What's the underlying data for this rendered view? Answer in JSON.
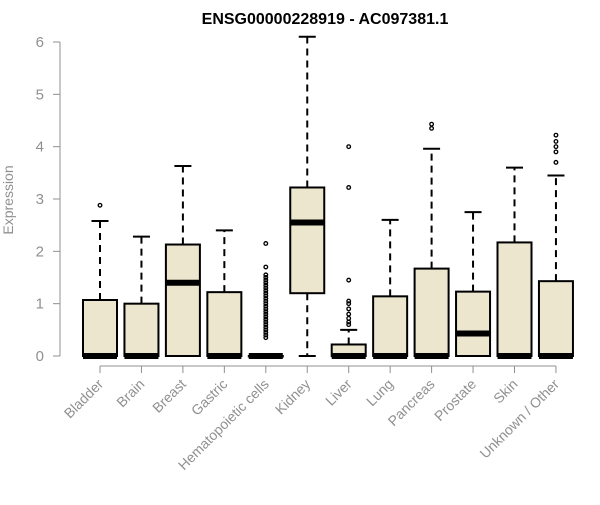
{
  "chart_data": {
    "type": "boxplot",
    "title": "ENSG00000228919 - AC097381.1",
    "xlabel": "",
    "ylabel": "Expression",
    "ylim": [
      0,
      6.2
    ],
    "yticks": [
      0,
      1,
      2,
      3,
      4,
      5,
      6
    ],
    "grid": false,
    "legend": "none",
    "box_fill": "#ede6cf",
    "box_stroke": "#000000",
    "outlier_style": "open-circle",
    "categories": [
      "Bladder",
      "Brain",
      "Breast",
      "Gastric",
      "Hematopoietic cells",
      "Kidney",
      "Liver",
      "Lung",
      "Pancreas",
      "Prostate",
      "Skin",
      "Unknown / Other"
    ],
    "boxes": [
      {
        "category": "Bladder",
        "q1": 0,
        "median": 0,
        "q3": 1.07,
        "whisker_low": 0,
        "whisker_high": 2.58,
        "outliers": [
          2.88
        ]
      },
      {
        "category": "Brain",
        "q1": 0,
        "median": 0,
        "q3": 1.0,
        "whisker_low": 0,
        "whisker_high": 2.28,
        "outliers": []
      },
      {
        "category": "Breast",
        "q1": 0,
        "median": 1.4,
        "q3": 2.13,
        "whisker_low": 0,
        "whisker_high": 3.63,
        "outliers": []
      },
      {
        "category": "Gastric",
        "q1": 0,
        "median": 0,
        "q3": 1.22,
        "whisker_low": 0,
        "whisker_high": 2.4,
        "outliers": []
      },
      {
        "category": "Hematopoietic cells",
        "q1": 0,
        "median": 0,
        "q3": 0,
        "whisker_low": 0,
        "whisker_high": 0,
        "outliers": [
          0.35,
          0.4,
          0.45,
          0.5,
          0.55,
          0.6,
          0.65,
          0.7,
          0.75,
          0.8,
          0.85,
          0.9,
          0.95,
          1.0,
          1.05,
          1.1,
          1.15,
          1.2,
          1.25,
          1.3,
          1.35,
          1.4,
          1.45,
          1.5,
          1.55,
          1.7,
          2.15
        ]
      },
      {
        "category": "Kidney",
        "q1": 1.2,
        "median": 2.55,
        "q3": 3.22,
        "whisker_low": 0,
        "whisker_high": 6.1,
        "outliers": []
      },
      {
        "category": "Liver",
        "q1": 0,
        "median": 0,
        "q3": 0.22,
        "whisker_low": 0,
        "whisker_high": 0.5,
        "outliers": [
          0.6,
          0.65,
          0.72,
          0.8,
          0.9,
          1.0,
          1.05,
          1.45,
          3.22,
          4.0
        ]
      },
      {
        "category": "Lung",
        "q1": 0,
        "median": 0,
        "q3": 1.14,
        "whisker_low": 0,
        "whisker_high": 2.6,
        "outliers": []
      },
      {
        "category": "Pancreas",
        "q1": 0,
        "median": 0,
        "q3": 1.67,
        "whisker_low": 0,
        "whisker_high": 3.96,
        "outliers": [
          4.35,
          4.43
        ]
      },
      {
        "category": "Prostate",
        "q1": 0,
        "median": 0.43,
        "q3": 1.23,
        "whisker_low": 0,
        "whisker_high": 2.75,
        "outliers": []
      },
      {
        "category": "Skin",
        "q1": 0,
        "median": 0,
        "q3": 2.17,
        "whisker_low": 0,
        "whisker_high": 3.6,
        "outliers": []
      },
      {
        "category": "Unknown / Other",
        "q1": 0,
        "median": 0,
        "q3": 1.43,
        "whisker_low": 0,
        "whisker_high": 3.45,
        "outliers": [
          3.7,
          3.9,
          4.0,
          4.1,
          4.22
        ]
      }
    ]
  }
}
